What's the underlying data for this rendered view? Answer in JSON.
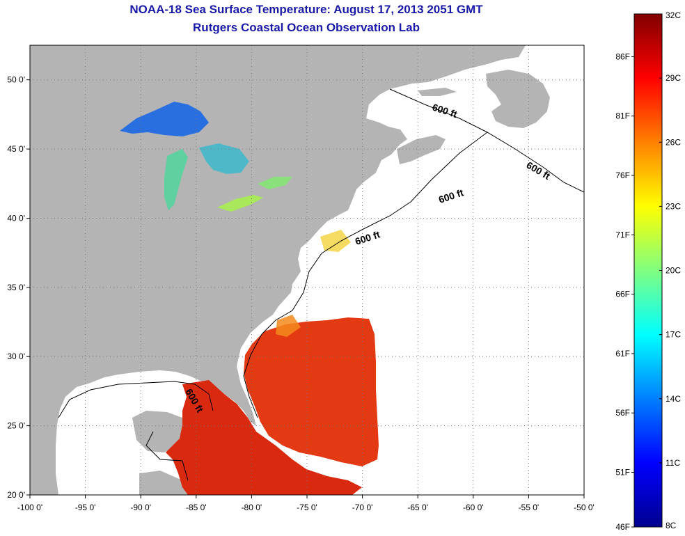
{
  "title": "NOAA-18 Sea Surface Temperature:  August 17, 2013 2051 GMT",
  "subtitle": "Rutgers Coastal Ocean Observation Lab",
  "map": {
    "lon_range": [
      -100,
      -50
    ],
    "lat_range": [
      20,
      52.5
    ],
    "lon_ticks": [
      {
        "value": -100,
        "label": "-100 0'"
      },
      {
        "value": -95,
        "label": "-95 0'"
      },
      {
        "value": -90,
        "label": "-90 0'"
      },
      {
        "value": -85,
        "label": "-85 0'"
      },
      {
        "value": -80,
        "label": "-80 0'"
      },
      {
        "value": -75,
        "label": "-75 0'"
      },
      {
        "value": -70,
        "label": "-70 0'"
      },
      {
        "value": -65,
        "label": "-65 0'"
      },
      {
        "value": -60,
        "label": "-60 0'"
      },
      {
        "value": -55,
        "label": "-55 0'"
      },
      {
        "value": -50,
        "label": "-50 0'"
      }
    ],
    "lat_ticks": [
      {
        "value": 50,
        "label": "50 0'"
      },
      {
        "value": 45,
        "label": "45 0'"
      },
      {
        "value": 40,
        "label": "40 0'"
      },
      {
        "value": 35,
        "label": "35 0'"
      },
      {
        "value": 30,
        "label": "30 0'"
      },
      {
        "value": 25,
        "label": "25 0'"
      },
      {
        "value": 20,
        "label": "20 0'"
      }
    ],
    "grid": "dotted",
    "land_color": "#b4b4b4",
    "ocean_no_data_color": "#ffffff",
    "contour_label": "600 ft",
    "contour_label_count": 5
  },
  "colorbar": {
    "range_c": [
      8,
      32
    ],
    "celsius_labels": [
      "32C",
      "29C",
      "26C",
      "23C",
      "20C",
      "17C",
      "14C",
      "11C",
      "8C"
    ],
    "fahrenheit_labels": [
      "86F",
      "81F",
      "76F",
      "71F",
      "66F",
      "61F",
      "56F",
      "51F",
      "46F"
    ],
    "colormap": "jet",
    "colors": [
      "#00008f",
      "#0000ff",
      "#0080ff",
      "#00ffff",
      "#80ff80",
      "#ffff00",
      "#ff8000",
      "#ff0000",
      "#800000"
    ]
  }
}
